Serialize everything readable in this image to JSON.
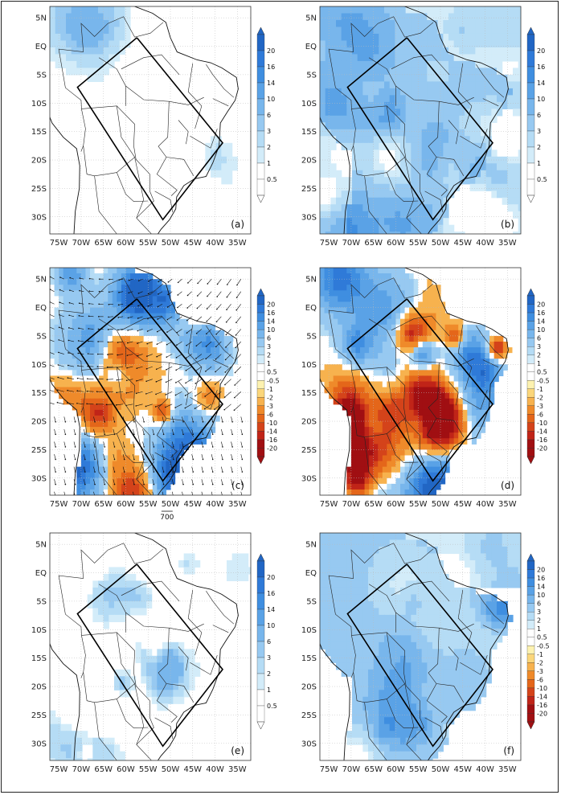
{
  "chart_data": [
    {
      "type": "heatmap",
      "panel_label": "(a)",
      "colorbar": [
        "20",
        "16",
        "14",
        "10",
        "6",
        "3",
        "2",
        "1",
        "0.5"
      ],
      "lat_ticks": [
        "5N",
        "EQ",
        "5S",
        "10S",
        "15S",
        "20S",
        "25S",
        "30S"
      ],
      "lon_ticks": [
        "75W",
        "70W",
        "65W",
        "60W",
        "55W",
        "50W",
        "45W",
        "40W",
        "35W"
      ],
      "intensity": "weak"
    },
    {
      "type": "heatmap",
      "panel_label": "(b)",
      "colorbar": [
        "20",
        "16",
        "14",
        "10",
        "6",
        "3",
        "2",
        "1",
        "0.5"
      ],
      "lat_ticks": [
        "5N",
        "EQ",
        "5S",
        "10S",
        "15S",
        "20S",
        "25S",
        "30S"
      ],
      "lon_ticks": [
        "75W",
        "70W",
        "65W",
        "60W",
        "55W",
        "50W",
        "45W",
        "40W",
        "35W"
      ],
      "intensity": "moderate"
    },
    {
      "type": "heatmap",
      "panel_label": "(c)",
      "colorbar": [
        "20",
        "16",
        "14",
        "10",
        "6",
        "3",
        "2",
        "1",
        "0.5",
        "-0.5",
        "-1",
        "-2",
        "-3",
        "-6",
        "-10",
        "-14",
        "-16",
        "-20"
      ],
      "lat_ticks": [
        "5N",
        "EQ",
        "5S",
        "10S",
        "15S",
        "20S",
        "25S",
        "30S"
      ],
      "lon_ticks": [
        "75W",
        "70W",
        "65W",
        "60W",
        "55W",
        "50W",
        "45W",
        "40W",
        "35W"
      ],
      "vector_reference": "700",
      "intensity": "anomaly"
    },
    {
      "type": "heatmap",
      "panel_label": "(d)",
      "colorbar": [
        "20",
        "16",
        "14",
        "10",
        "6",
        "3",
        "2",
        "1",
        "0.5",
        "-0.5",
        "-1",
        "-2",
        "-3",
        "-6",
        "-10",
        "-14",
        "-16",
        "-20"
      ],
      "lat_ticks": [
        "5N",
        "EQ",
        "5S",
        "10S",
        "15S",
        "20S",
        "25S",
        "30S"
      ],
      "lon_ticks": [
        "75W",
        "70W",
        "65W",
        "60W",
        "55W",
        "50W",
        "45W",
        "40W",
        "35W"
      ],
      "intensity": "anomaly"
    },
    {
      "type": "heatmap",
      "panel_label": "(e)",
      "colorbar": [
        "20",
        "16",
        "14",
        "10",
        "6",
        "3",
        "2",
        "1",
        "0.5"
      ],
      "lat_ticks": [
        "5N",
        "EQ",
        "5S",
        "10S",
        "15S",
        "20S",
        "25S",
        "30S"
      ],
      "lon_ticks": [
        "75W",
        "70W",
        "65W",
        "60W",
        "55W",
        "50W",
        "45W",
        "40W",
        "35W"
      ],
      "intensity": "weak"
    },
    {
      "type": "heatmap",
      "panel_label": "(f)",
      "colorbar": [
        "20",
        "16",
        "14",
        "10",
        "6",
        "3",
        "2",
        "1",
        "0.5",
        "-0.5",
        "-1",
        "-2",
        "-3",
        "-6",
        "-10",
        "-14",
        "-16",
        "-20"
      ],
      "lat_ticks": [
        "5N",
        "EQ",
        "5S",
        "10S",
        "15S",
        "20S",
        "25S",
        "30S"
      ],
      "lon_ticks": [
        "75W",
        "70W",
        "65W",
        "60W",
        "55W",
        "50W",
        "45W",
        "40W",
        "35W"
      ],
      "intensity": "positive"
    }
  ],
  "colors": {
    "pos": [
      "#2166c4",
      "#2f7ad8",
      "#3f8ee0",
      "#5aa2e6",
      "#78b6ec",
      "#97c9f1",
      "#b5dcf5",
      "#d3ecf9",
      "#ffffff"
    ],
    "neg": [
      "#ffffff",
      "#fdf2b0",
      "#fbd67a",
      "#f7b24e",
      "#ef8a2a",
      "#e4661a",
      "#d4431a",
      "#c02418",
      "#a00f12"
    ]
  }
}
